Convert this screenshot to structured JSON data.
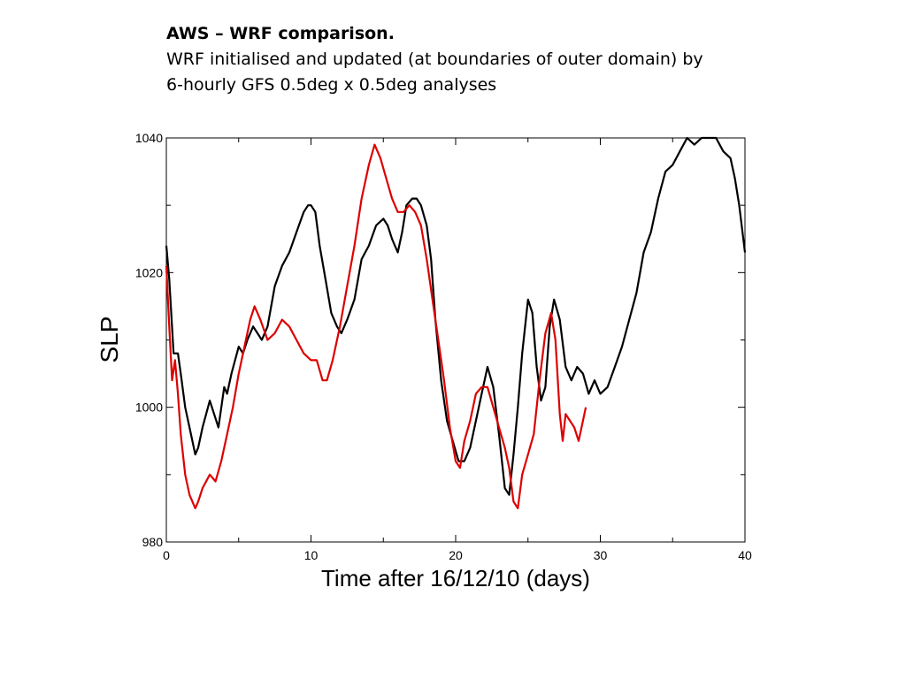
{
  "slide": {
    "title": "AWS – WRF comparison.",
    "line1": "WRF initialised and updated (at boundaries of outer domain) by",
    "line2": "6-hourly GFS 0.5deg x 0.5deg analyses"
  },
  "chart_data": {
    "type": "line",
    "title": "",
    "xlabel": "Time after 16/12/10 (days)",
    "ylabel": "SLP",
    "xlim": [
      0,
      40
    ],
    "ylim": [
      980,
      1040
    ],
    "xticks": [
      0,
      10,
      20,
      30,
      40
    ],
    "yticks": [
      980,
      1000,
      1020,
      1040
    ],
    "yminor": [
      990,
      1010,
      1030
    ],
    "xminor": [
      5,
      15,
      25,
      35
    ],
    "grid": false,
    "legend": "none",
    "series": [
      {
        "color": "#000000",
        "x": [
          0,
          0.2,
          0.5,
          0.8,
          1.0,
          1.3,
          1.6,
          2.0,
          2.2,
          2.5,
          3.0,
          3.3,
          3.6,
          4.0,
          4.2,
          4.5,
          5.0,
          5.3,
          5.6,
          6.0,
          6.3,
          6.6,
          7.0,
          7.5,
          8.0,
          8.5,
          9.0,
          9.5,
          9.8,
          10.0,
          10.3,
          10.6,
          11.0,
          11.4,
          11.8,
          12.1,
          12.5,
          13.0,
          13.5,
          14.0,
          14.5,
          15.0,
          15.3,
          15.6,
          16.0,
          16.3,
          16.6,
          17.0,
          17.3,
          17.6,
          18.0,
          18.3,
          18.6,
          19.0,
          19.4,
          19.8,
          20.2,
          20.6,
          21.0,
          21.4,
          21.8,
          22.2,
          22.6,
          23.0,
          23.4,
          23.7,
          24.0,
          24.3,
          24.6,
          25.0,
          25.3,
          25.6,
          25.9,
          26.2,
          26.5,
          26.8,
          27.2,
          27.6,
          28.0,
          28.4,
          28.8,
          29.2,
          29.6,
          30.0,
          30.5,
          31.0,
          31.5,
          32.0,
          32.5,
          33.0,
          33.5,
          34.0,
          34.5,
          35.0,
          35.5,
          36.0,
          36.5,
          37.0,
          37.5,
          38.0,
          38.5,
          39.0,
          39.3,
          39.6,
          40.0
        ],
        "y": [
          1024,
          1019,
          1008,
          1008,
          1005,
          1000,
          997,
          993,
          994,
          997,
          1001,
          999,
          997,
          1003,
          1002,
          1005,
          1009,
          1008,
          1010,
          1012,
          1011,
          1010,
          1012,
          1018,
          1021,
          1023,
          1026,
          1029,
          1030,
          1030,
          1029,
          1024,
          1019,
          1014,
          1012,
          1011,
          1013,
          1016,
          1022,
          1024,
          1027,
          1028,
          1027,
          1025,
          1023,
          1026,
          1030,
          1031,
          1031,
          1030,
          1027,
          1022,
          1013,
          1004,
          998,
          995,
          992,
          992,
          994,
          998,
          1002,
          1006,
          1003,
          996,
          988,
          987,
          993,
          1000,
          1008,
          1016,
          1014,
          1006,
          1001,
          1003,
          1012,
          1016,
          1013,
          1006,
          1004,
          1006,
          1005,
          1002,
          1004,
          1002,
          1003,
          1006,
          1009,
          1013,
          1017,
          1023,
          1026,
          1031,
          1035,
          1036,
          1038,
          1040,
          1039,
          1040,
          1040,
          1040,
          1038,
          1037,
          1034,
          1030,
          1023
        ]
      },
      {
        "color": "#dd0000",
        "x": [
          0,
          0.2,
          0.4,
          0.6,
          0.8,
          1.0,
          1.3,
          1.6,
          2.0,
          2.2,
          2.5,
          3.0,
          3.4,
          3.8,
          4.2,
          4.6,
          5.0,
          5.4,
          5.8,
          6.1,
          6.5,
          7.0,
          7.5,
          8.0,
          8.5,
          9.0,
          9.5,
          10.0,
          10.4,
          10.8,
          11.1,
          11.5,
          12.0,
          12.5,
          13.0,
          13.5,
          14.0,
          14.4,
          14.8,
          15.2,
          15.6,
          16.0,
          16.4,
          16.8,
          17.2,
          17.6,
          18.0,
          18.4,
          18.8,
          19.2,
          19.6,
          20.0,
          20.3,
          20.6,
          21.0,
          21.4,
          21.8,
          22.2,
          22.6,
          23.0,
          23.4,
          23.7,
          24.0,
          24.3,
          24.6,
          25.0,
          25.4,
          25.8,
          26.2,
          26.6,
          26.9,
          27.2,
          27.4,
          27.6,
          27.9,
          28.2,
          28.5,
          28.8,
          29.0
        ],
        "y": [
          1021,
          1012,
          1004,
          1007,
          1002,
          996,
          990,
          987,
          985,
          986,
          988,
          990,
          989,
          992,
          996,
          1000,
          1005,
          1009,
          1013,
          1015,
          1013,
          1010,
          1011,
          1013,
          1012,
          1010,
          1008,
          1007,
          1007,
          1004,
          1004,
          1007,
          1012,
          1018,
          1024,
          1031,
          1036,
          1039,
          1037,
          1034,
          1031,
          1029,
          1029,
          1030,
          1029,
          1027,
          1022,
          1016,
          1010,
          1004,
          997,
          992,
          991,
          995,
          998,
          1002,
          1003,
          1003,
          1000,
          997,
          994,
          991,
          986,
          985,
          990,
          993,
          996,
          1004,
          1011,
          1014,
          1010,
          999,
          995,
          999,
          998,
          997,
          995,
          998,
          1000
        ]
      }
    ]
  }
}
